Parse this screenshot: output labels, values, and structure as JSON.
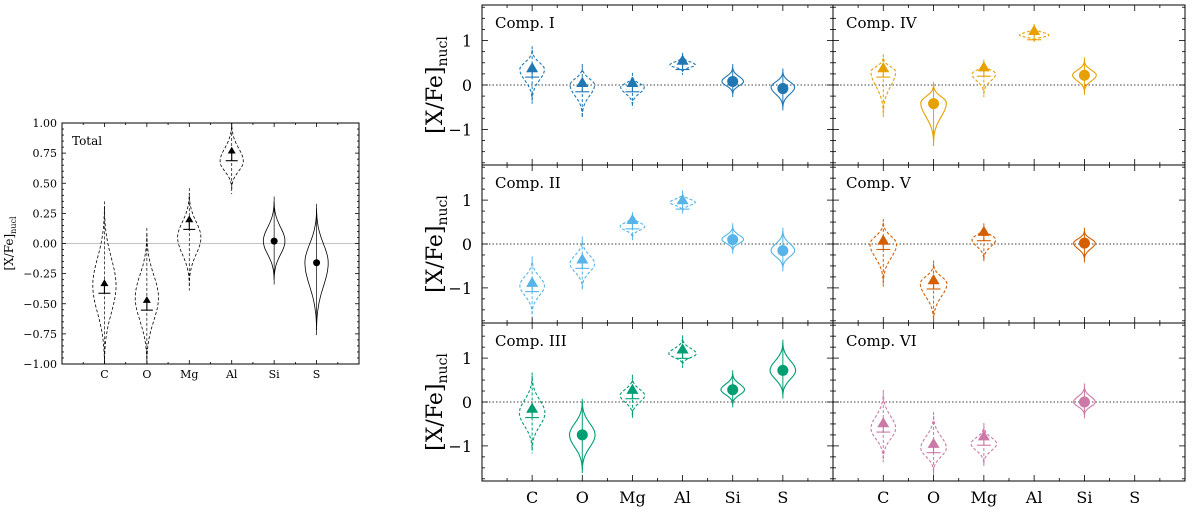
{
  "chart_data": [
    {
      "id": "total",
      "type": "violin",
      "title": "Total",
      "ylabel": "[X/Fe]",
      "ylabel_sub": "nucl",
      "ylim": [
        -1.0,
        1.0
      ],
      "yticks": [
        "1.00",
        "0.75",
        "0.50",
        "0.25",
        "0.00",
        "−0.25",
        "−0.50",
        "−0.75",
        "−1.00"
      ],
      "ytick_values": [
        1.0,
        0.75,
        0.5,
        0.25,
        0.0,
        -0.25,
        -0.5,
        -0.75,
        -1.0
      ],
      "categories": [
        "C",
        "O",
        "Mg",
        "Al",
        "Si",
        "S"
      ],
      "color": "#000000",
      "points": [
        {
          "element": "C",
          "value": -0.33,
          "marker": "lower-limit",
          "violin": {
            "mid": -0.35,
            "low": -1.0,
            "high": 0.31,
            "width": 0.28,
            "style": "dashed"
          }
        },
        {
          "element": "O",
          "value": -0.47,
          "marker": "lower-limit",
          "violin": {
            "mid": -0.45,
            "low": -1.0,
            "high": 0.09,
            "width": 0.28,
            "style": "dashed"
          }
        },
        {
          "element": "Mg",
          "value": 0.2,
          "marker": "lower-limit",
          "violin": {
            "mid": 0.05,
            "low": -0.35,
            "high": 0.42,
            "width": 0.28,
            "style": "dashed"
          }
        },
        {
          "element": "Al",
          "value": 0.77,
          "marker": "lower-limit",
          "violin": {
            "mid": 0.68,
            "low": 0.45,
            "high": 1.0,
            "width": 0.28,
            "style": "dashed"
          }
        },
        {
          "element": "Si",
          "value": 0.02,
          "marker": "measurement",
          "violin": {
            "mid": 0.02,
            "low": -0.3,
            "high": 0.35,
            "width": 0.26,
            "style": "solid"
          }
        },
        {
          "element": "S",
          "value": -0.16,
          "marker": "measurement",
          "violin": {
            "mid": -0.16,
            "low": -0.72,
            "high": 0.29,
            "width": 0.28,
            "style": "solid"
          }
        }
      ]
    },
    {
      "id": "comp1",
      "type": "violin",
      "title": "Comp. I",
      "ylabel": "[X/Fe]",
      "ylabel_sub": "nucl",
      "ylim": [
        -1.8,
        1.8
      ],
      "yticks": [
        "1",
        "0",
        "−1"
      ],
      "ytick_values": [
        1,
        0,
        -1
      ],
      "categories": [
        "C",
        "O",
        "Mg",
        "Al",
        "Si",
        "S"
      ],
      "color": "#1f77b4",
      "points": [
        {
          "element": "C",
          "value": 0.38,
          "marker": "lower-limit",
          "violin": {
            "mid": 0.35,
            "low": -0.35,
            "high": 0.8,
            "width": 0.25,
            "style": "dashed"
          }
        },
        {
          "element": "O",
          "value": 0.05,
          "marker": "lower-limit",
          "violin": {
            "mid": 0.0,
            "low": -0.7,
            "high": 0.4,
            "width": 0.25,
            "style": "dashed"
          }
        },
        {
          "element": "Mg",
          "value": 0.05,
          "marker": "lower-limit",
          "violin": {
            "mid": -0.05,
            "low": -0.45,
            "high": 0.2,
            "width": 0.24,
            "style": "dashed"
          }
        },
        {
          "element": "Al",
          "value": 0.55,
          "marker": "lower-limit",
          "violin": {
            "mid": 0.45,
            "low": 0.3,
            "high": 0.65,
            "width": 0.26,
            "style": "dashed"
          }
        },
        {
          "element": "Si",
          "value": 0.08,
          "marker": "measurement",
          "violin": {
            "mid": 0.08,
            "low": -0.2,
            "high": 0.4,
            "width": 0.22,
            "style": "solid"
          }
        },
        {
          "element": "S",
          "value": -0.08,
          "marker": "measurement",
          "violin": {
            "mid": -0.05,
            "low": -0.5,
            "high": 0.3,
            "width": 0.24,
            "style": "solid"
          }
        }
      ]
    },
    {
      "id": "comp4",
      "type": "violin",
      "title": "Comp. IV",
      "ylim": [
        -1.8,
        1.8
      ],
      "categories": [
        "C",
        "O",
        "Mg",
        "Al",
        "Si",
        "S"
      ],
      "color": "#e6a000",
      "points": [
        {
          "element": "C",
          "value": 0.38,
          "marker": "lower-limit",
          "violin": {
            "mid": 0.3,
            "low": -0.65,
            "high": 0.62,
            "width": 0.25,
            "style": "dashed"
          }
        },
        {
          "element": "O",
          "value": -0.42,
          "marker": "measurement",
          "violin": {
            "mid": -0.4,
            "low": -1.3,
            "high": 0.0,
            "width": 0.26,
            "style": "solid"
          }
        },
        {
          "element": "Mg",
          "value": 0.4,
          "marker": "lower-limit",
          "violin": {
            "mid": 0.25,
            "low": -0.2,
            "high": 0.5,
            "width": 0.24,
            "style": "dashed"
          }
        },
        {
          "element": "Al",
          "value": 1.22,
          "marker": "lower-limit",
          "violin": {
            "mid": 1.12,
            "low": 1.0,
            "high": 1.3,
            "width": 0.3,
            "style": "dashed"
          }
        },
        {
          "element": "Si",
          "value": 0.22,
          "marker": "measurement",
          "violin": {
            "mid": 0.22,
            "low": -0.15,
            "high": 0.55,
            "width": 0.24,
            "style": "solid"
          }
        }
      ]
    },
    {
      "id": "comp2",
      "type": "violin",
      "title": "Comp. II",
      "ylabel": "[X/Fe]",
      "ylabel_sub": "nucl",
      "ylim": [
        -1.8,
        1.8
      ],
      "yticks": [
        "1",
        "0",
        "−1"
      ],
      "ytick_values": [
        1,
        0,
        -1
      ],
      "categories": [
        "C",
        "O",
        "Mg",
        "Al",
        "Si",
        "S"
      ],
      "color": "#56b4e9",
      "points": [
        {
          "element": "C",
          "value": -0.88,
          "marker": "lower-limit",
          "violin": {
            "mid": -0.95,
            "low": -1.6,
            "high": -0.35,
            "width": 0.25,
            "style": "dashed"
          }
        },
        {
          "element": "O",
          "value": -0.35,
          "marker": "lower-limit",
          "violin": {
            "mid": -0.45,
            "low": -1.0,
            "high": 0.1,
            "width": 0.25,
            "style": "dashed"
          }
        },
        {
          "element": "Mg",
          "value": 0.55,
          "marker": "lower-limit",
          "violin": {
            "mid": 0.4,
            "low": 0.15,
            "high": 0.65,
            "width": 0.25,
            "style": "dashed"
          }
        },
        {
          "element": "Al",
          "value": 1.0,
          "marker": "lower-limit",
          "violin": {
            "mid": 0.95,
            "low": 0.75,
            "high": 1.15,
            "width": 0.26,
            "style": "dashed"
          }
        },
        {
          "element": "Si",
          "value": 0.1,
          "marker": "measurement",
          "violin": {
            "mid": 0.1,
            "low": -0.15,
            "high": 0.4,
            "width": 0.22,
            "style": "solid"
          }
        },
        {
          "element": "S",
          "value": -0.15,
          "marker": "measurement",
          "violin": {
            "mid": -0.15,
            "low": -0.55,
            "high": 0.3,
            "width": 0.24,
            "style": "solid"
          }
        }
      ]
    },
    {
      "id": "comp5",
      "type": "violin",
      "title": "Comp. V",
      "ylim": [
        -1.8,
        1.8
      ],
      "categories": [
        "C",
        "O",
        "Mg",
        "Al",
        "Si",
        "S"
      ],
      "color": "#d55e00",
      "points": [
        {
          "element": "C",
          "value": 0.08,
          "marker": "lower-limit",
          "violin": {
            "mid": 0.0,
            "low": -0.9,
            "high": 0.5,
            "width": 0.27,
            "style": "dashed"
          }
        },
        {
          "element": "O",
          "value": -0.82,
          "marker": "lower-limit",
          "violin": {
            "mid": -0.9,
            "low": -1.75,
            "high": -0.45,
            "width": 0.27,
            "style": "dashed"
          }
        },
        {
          "element": "Mg",
          "value": 0.28,
          "marker": "lower-limit",
          "violin": {
            "mid": 0.1,
            "low": -0.35,
            "high": 0.4,
            "width": 0.24,
            "style": "dashed"
          }
        },
        {
          "element": "Si",
          "value": 0.02,
          "marker": "measurement",
          "violin": {
            "mid": 0.02,
            "low": -0.35,
            "high": 0.3,
            "width": 0.22,
            "style": "solid"
          }
        }
      ]
    },
    {
      "id": "comp3",
      "type": "violin",
      "title": "Comp. III",
      "ylabel": "[X/Fe]",
      "ylabel_sub": "nucl",
      "ylim": [
        -1.8,
        1.8
      ],
      "yticks": [
        "1",
        "0",
        "−1"
      ],
      "ytick_values": [
        1,
        0,
        -1
      ],
      "categories": [
        "C",
        "O",
        "Mg",
        "Al",
        "Si",
        "S"
      ],
      "xtick_labels": [
        "C",
        "O",
        "Mg",
        "Al",
        "Si",
        "S"
      ],
      "color": "#009e73",
      "points": [
        {
          "element": "C",
          "value": -0.15,
          "marker": "lower-limit",
          "violin": {
            "mid": -0.25,
            "low": -1.1,
            "high": 0.6,
            "width": 0.26,
            "style": "dashed"
          }
        },
        {
          "element": "O",
          "value": -0.75,
          "marker": "measurement",
          "violin": {
            "mid": -0.75,
            "low": -1.55,
            "high": 0.0,
            "width": 0.26,
            "style": "solid"
          }
        },
        {
          "element": "Mg",
          "value": 0.28,
          "marker": "lower-limit",
          "violin": {
            "mid": 0.15,
            "low": -0.3,
            "high": 0.55,
            "width": 0.25,
            "style": "dashed"
          }
        },
        {
          "element": "Al",
          "value": 1.2,
          "marker": "lower-limit",
          "violin": {
            "mid": 1.1,
            "low": 0.85,
            "high": 1.45,
            "width": 0.28,
            "style": "dashed"
          }
        },
        {
          "element": "Si",
          "value": 0.28,
          "marker": "measurement",
          "violin": {
            "mid": 0.28,
            "low": -0.05,
            "high": 0.65,
            "width": 0.24,
            "style": "solid"
          }
        },
        {
          "element": "S",
          "value": 0.72,
          "marker": "measurement",
          "violin": {
            "mid": 0.72,
            "low": 0.15,
            "high": 1.35,
            "width": 0.26,
            "style": "solid"
          }
        }
      ]
    },
    {
      "id": "comp6",
      "type": "violin",
      "title": "Comp. VI",
      "ylim": [
        -1.8,
        1.8
      ],
      "categories": [
        "C",
        "O",
        "Mg",
        "Al",
        "Si",
        "S"
      ],
      "xtick_labels": [
        "C",
        "O",
        "Mg",
        "Al",
        "Si",
        "S"
      ],
      "color": "#cc79a7",
      "points": [
        {
          "element": "C",
          "value": -0.48,
          "marker": "lower-limit",
          "violin": {
            "mid": -0.6,
            "low": -1.3,
            "high": 0.2,
            "width": 0.25,
            "style": "dashed"
          }
        },
        {
          "element": "O",
          "value": -0.95,
          "marker": "lower-limit",
          "violin": {
            "mid": -1.05,
            "low": -1.6,
            "high": -0.3,
            "width": 0.26,
            "style": "dashed"
          }
        },
        {
          "element": "Mg",
          "value": -0.78,
          "marker": "lower-limit",
          "violin": {
            "mid": -0.95,
            "low": -1.4,
            "high": -0.55,
            "width": 0.26,
            "style": "dashed"
          }
        },
        {
          "element": "Si",
          "value": 0.0,
          "marker": "measurement",
          "violin": {
            "mid": 0.0,
            "low": -0.3,
            "high": 0.35,
            "width": 0.22,
            "style": "solid"
          }
        }
      ]
    }
  ]
}
